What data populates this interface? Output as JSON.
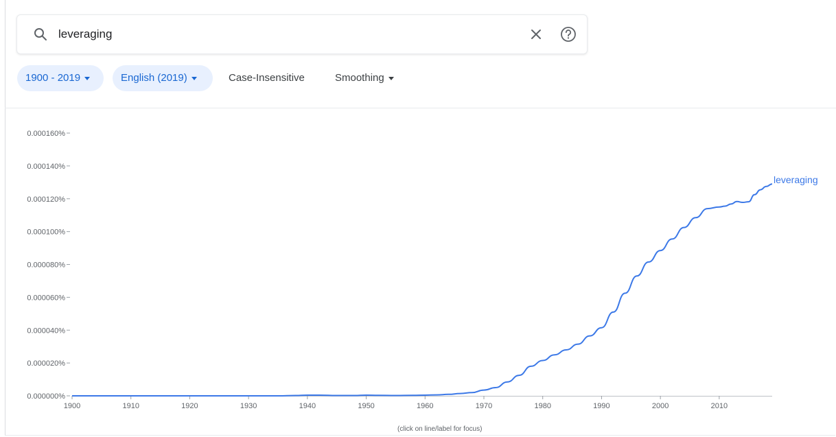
{
  "search": {
    "query": "leveraging"
  },
  "filters": {
    "year_range": "1900 - 2019",
    "corpus": "English (2019)",
    "case": "Case-Insensitive",
    "smoothing": "Smoothing"
  },
  "icons": {
    "search": "search-icon",
    "clear": "close-icon",
    "help": "help-circle-icon",
    "dropdown": "caret-down-icon"
  },
  "colors": {
    "accent": "#1967d2",
    "line": "#3b78e7",
    "chip_bg": "#e8f0fe"
  },
  "chart_data": {
    "type": "line",
    "title": "",
    "xlabel": "",
    "ylabel": "",
    "xlim": [
      1900,
      2019
    ],
    "ylim": [
      0,
      0.00016
    ],
    "x_ticks": [
      1900,
      1910,
      1920,
      1930,
      1940,
      1950,
      1960,
      1970,
      1980,
      1990,
      2000,
      2010
    ],
    "x_tick_labels": [
      "1900",
      "1910",
      "1920",
      "1930",
      "1940",
      "1950",
      "1960",
      "1970",
      "1980",
      "1990",
      "2000",
      "2010"
    ],
    "y_ticks": [
      0,
      2e-05,
      4e-05,
      6e-05,
      8e-05,
      0.0001,
      0.00012,
      0.00014,
      0.00016
    ],
    "y_tick_labels": [
      "0.000000%",
      "0.000020%",
      "0.000040%",
      "0.000060%",
      "0.000080%",
      "0.000100%",
      "0.000120%",
      "0.000140%",
      "0.000160%"
    ],
    "grid": false,
    "caption": "(click on line/label for focus)",
    "series": [
      {
        "name": "leveraging",
        "x": [
          1900,
          1905,
          1910,
          1915,
          1920,
          1925,
          1930,
          1935,
          1938,
          1940,
          1942,
          1945,
          1948,
          1950,
          1952,
          1955,
          1958,
          1960,
          1962,
          1964,
          1966,
          1968,
          1970,
          1972,
          1974,
          1976,
          1978,
          1980,
          1982,
          1984,
          1986,
          1988,
          1990,
          1992,
          1994,
          1996,
          1998,
          2000,
          2002,
          2004,
          2006,
          2008,
          2010,
          2011,
          2012,
          2013,
          2014,
          2015,
          2016,
          2017,
          2018,
          2019
        ],
        "values": [
          0.0,
          0.0,
          0.0,
          0.0,
          0.0,
          0.0,
          0.0,
          0.0,
          2e-07,
          4e-07,
          4e-07,
          2e-07,
          2e-07,
          4e-07,
          3e-07,
          2e-07,
          3e-07,
          4e-07,
          6e-07,
          9e-07,
          1.4e-06,
          2e-06,
          3.5e-06,
          5e-06,
          8.5e-06,
          1.25e-05,
          1.8e-05,
          2.15e-05,
          2.5e-05,
          2.8e-05,
          3.15e-05,
          3.65e-05,
          4.15e-05,
          5.1e-05,
          6.25e-05,
          7.3e-05,
          8.15e-05,
          8.85e-05,
          9.55e-05,
          0.0001025,
          0.0001085,
          0.000114,
          0.000115,
          0.0001155,
          0.0001168,
          0.0001183,
          0.0001178,
          0.0001182,
          0.0001225,
          0.0001255,
          0.0001275,
          0.000129
        ]
      }
    ]
  }
}
